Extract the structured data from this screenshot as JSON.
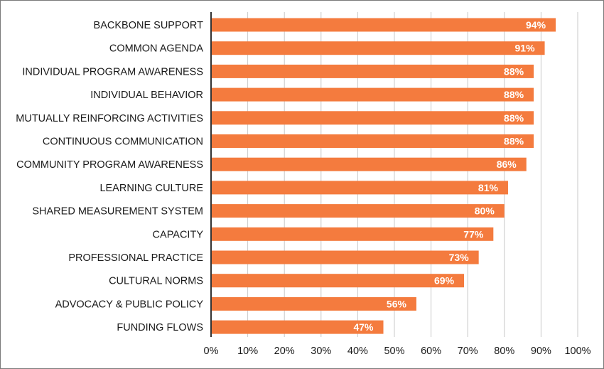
{
  "chart_data": {
    "type": "bar",
    "orientation": "horizontal",
    "categories": [
      "BACKBONE SUPPORT",
      "COMMON AGENDA",
      "INDIVIDUAL PROGRAM AWARENESS",
      "INDIVIDUAL BEHAVIOR",
      "MUTUALLY REINFORCING ACTIVITIES",
      "CONTINUOUS COMMUNICATION",
      "COMMUNITY PROGRAM AWARENESS",
      "LEARNING CULTURE",
      "SHARED MEASUREMENT SYSTEM",
      "CAPACITY",
      "PROFESSIONAL PRACTICE",
      "CULTURAL NORMS",
      "ADVOCACY & PUBLIC POLICY",
      "FUNDING FLOWS"
    ],
    "values": [
      94,
      91,
      88,
      88,
      88,
      88,
      86,
      81,
      80,
      77,
      73,
      69,
      56,
      47
    ],
    "data_labels": [
      "94%",
      "91%",
      "88%",
      "88%",
      "88%",
      "88%",
      "86%",
      "81%",
      "80%",
      "77%",
      "73%",
      "69%",
      "56%",
      "47%"
    ],
    "xlim": [
      0,
      100
    ],
    "x_ticks": [
      "0%",
      "10%",
      "20%",
      "30%",
      "40%",
      "50%",
      "60%",
      "70%",
      "80%",
      "90%",
      "100%"
    ],
    "grid": "vertical",
    "title": "",
    "xlabel": "",
    "ylabel": "",
    "colors": {
      "bar": "#f47b3e",
      "grid": "#c8c8c8",
      "axis": "#333333"
    }
  }
}
